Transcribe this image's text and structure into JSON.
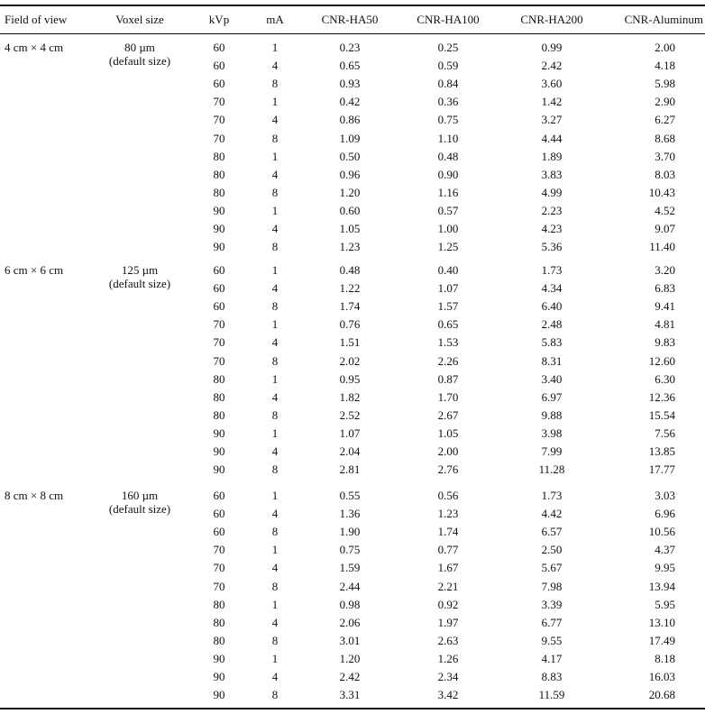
{
  "table": {
    "columns": [
      "Field of view",
      "Voxel size",
      "kVp",
      "mA",
      "CNR-HA50",
      "CNR-HA100",
      "CNR-HA200",
      "CNR-Aluminum"
    ],
    "groups": [
      {
        "field_of_view": "4 cm × 4 cm",
        "voxel_size": "80 µm",
        "voxel_note": "(default size)",
        "rows": [
          [
            "60",
            "1",
            "0.23",
            "0.25",
            "0.99",
            "2.00"
          ],
          [
            "60",
            "4",
            "0.65",
            "0.59",
            "2.42",
            "4.18"
          ],
          [
            "60",
            "8",
            "0.93",
            "0.84",
            "3.60",
            "5.98"
          ],
          [
            "70",
            "1",
            "0.42",
            "0.36",
            "1.42",
            "2.90"
          ],
          [
            "70",
            "4",
            "0.86",
            "0.75",
            "3.27",
            "6.27"
          ],
          [
            "70",
            "8",
            "1.09",
            "1.10",
            "4.44",
            "8.68"
          ],
          [
            "80",
            "1",
            "0.50",
            "0.48",
            "1.89",
            "3.70"
          ],
          [
            "80",
            "4",
            "0.96",
            "0.90",
            "3.83",
            "8.03"
          ],
          [
            "80",
            "8",
            "1.20",
            "1.16",
            "4.99",
            "10.43"
          ],
          [
            "90",
            "1",
            "0.60",
            "0.57",
            "2.23",
            "4.52"
          ],
          [
            "90",
            "4",
            "1.05",
            "1.00",
            "4.23",
            "9.07"
          ],
          [
            "90",
            "8",
            "1.23",
            "1.25",
            "5.36",
            "11.40"
          ]
        ]
      },
      {
        "field_of_view": "6 cm × 6 cm",
        "voxel_size": "125 µm",
        "voxel_note": "(default size)",
        "rows": [
          [
            "60",
            "1",
            "0.48",
            "0.40",
            "1.73",
            "3.20"
          ],
          [
            "60",
            "4",
            "1.22",
            "1.07",
            "4.34",
            "6.83"
          ],
          [
            "60",
            "8",
            "1.74",
            "1.57",
            "6.40",
            "9.41"
          ],
          [
            "70",
            "1",
            "0.76",
            "0.65",
            "2.48",
            "4.81"
          ],
          [
            "70",
            "4",
            "1.51",
            "1.53",
            "5.83",
            "9.83"
          ],
          [
            "70",
            "8",
            "2.02",
            "2.26",
            "8.31",
            "12.60"
          ],
          [
            "80",
            "1",
            "0.95",
            "0.87",
            "3.40",
            "6.30"
          ],
          [
            "80",
            "4",
            "1.82",
            "1.70",
            "6.97",
            "12.36"
          ],
          [
            "80",
            "8",
            "2.52",
            "2.67",
            "9.88",
            "15.54"
          ],
          [
            "90",
            "1",
            "1.07",
            "1.05",
            "3.98",
            "7.56"
          ],
          [
            "90",
            "4",
            "2.04",
            "2.00",
            "7.99",
            "13.85"
          ],
          [
            "90",
            "8",
            "2.81",
            "2.76",
            "11.28",
            "17.77"
          ]
        ]
      },
      {
        "field_of_view": "8 cm × 8 cm",
        "voxel_size": "160 µm",
        "voxel_note": "(default size)",
        "rows": [
          [
            "60",
            "1",
            "0.55",
            "0.56",
            "1.73",
            "3.03"
          ],
          [
            "60",
            "4",
            "1.36",
            "1.23",
            "4.42",
            "6.96"
          ],
          [
            "60",
            "8",
            "1.90",
            "1.74",
            "6.57",
            "10.56"
          ],
          [
            "70",
            "1",
            "0.75",
            "0.77",
            "2.50",
            "4.37"
          ],
          [
            "70",
            "4",
            "1.59",
            "1.67",
            "5.67",
            "9.95"
          ],
          [
            "70",
            "8",
            "2.44",
            "2.21",
            "7.98",
            "13.94"
          ],
          [
            "80",
            "1",
            "0.98",
            "0.92",
            "3.39",
            "5.95"
          ],
          [
            "80",
            "4",
            "2.06",
            "1.97",
            "6.77",
            "13.10"
          ],
          [
            "80",
            "8",
            "3.01",
            "2.63",
            "9.55",
            "17.49"
          ],
          [
            "90",
            "1",
            "1.20",
            "1.26",
            "4.17",
            "8.18"
          ],
          [
            "90",
            "4",
            "2.42",
            "2.34",
            "8.83",
            "16.03"
          ],
          [
            "90",
            "8",
            "3.31",
            "3.42",
            "11.59",
            "20.68"
          ]
        ]
      }
    ]
  }
}
